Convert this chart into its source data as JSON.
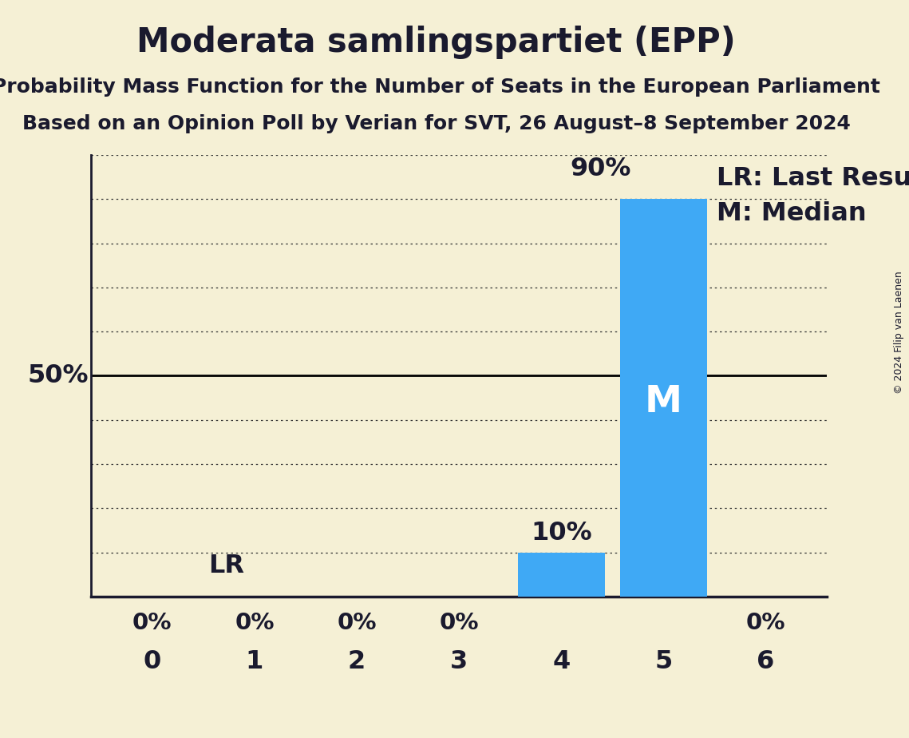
{
  "title": "Moderata samlingspartiet (EPP)",
  "subtitle1": "Probability Mass Function for the Number of Seats in the European Parliament",
  "subtitle2": "Based on an Opinion Poll by Verian for SVT, 26 August–8 September 2024",
  "copyright": "© 2024 Filip van Laenen",
  "x_values": [
    0,
    1,
    2,
    3,
    4,
    5,
    6
  ],
  "y_values": [
    0,
    0,
    0,
    0,
    10,
    90,
    0
  ],
  "bar_color": "#3fa9f5",
  "median_seat": 5,
  "last_result_seat": 0,
  "background_color": "#f5f0d5",
  "text_color": "#1a1a2e",
  "fifty_pct_line_color": "#000000",
  "grid_color": "#333333",
  "ylim": [
    0,
    100
  ],
  "ylabel_50pct": "50%",
  "legend_lr": "LR: Last Result",
  "legend_m": "M: Median",
  "annotation_90pct": "90%",
  "annotation_10pct": "10%",
  "annotation_lr": "LR"
}
